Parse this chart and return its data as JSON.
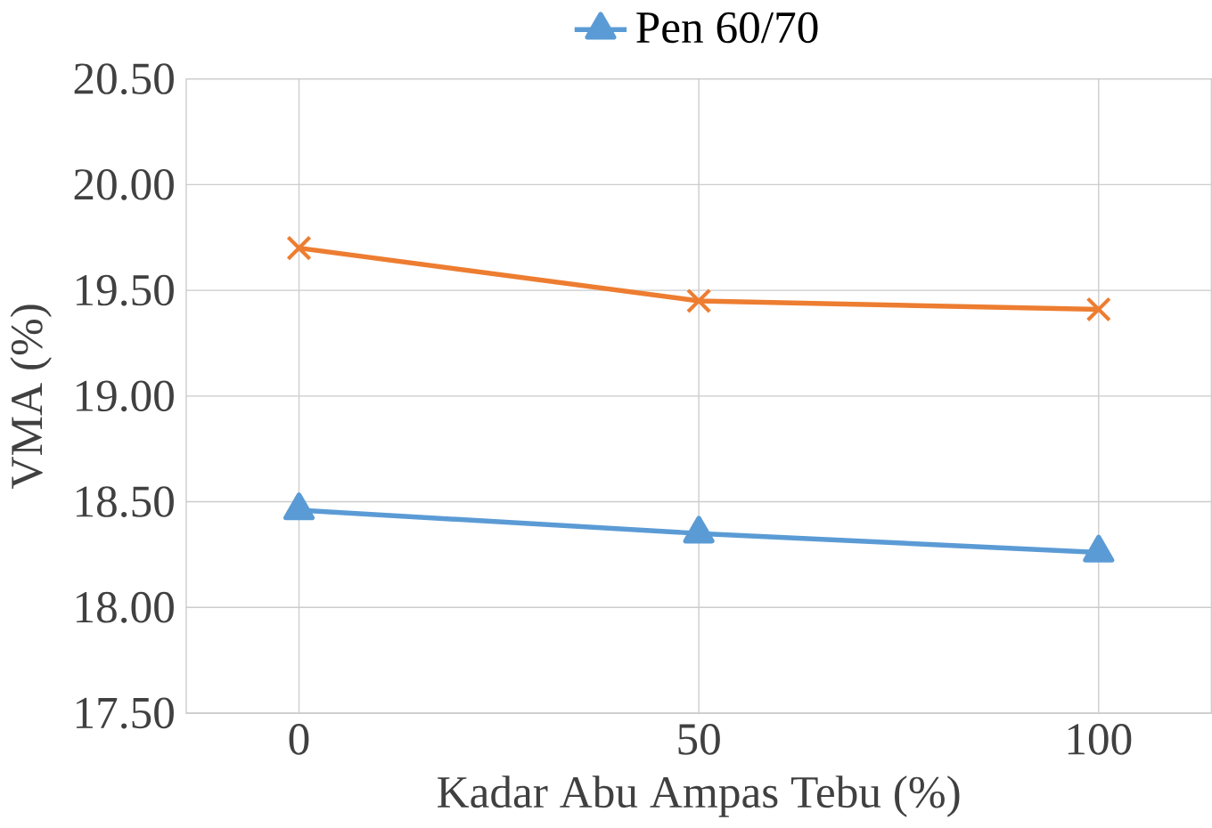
{
  "chart_data": {
    "type": "line",
    "xlabel": "Kadar Abu Ampas Tebu (%)",
    "ylabel": "VMA (%)",
    "x": [
      0,
      50,
      100
    ],
    "series": [
      {
        "name": "Pen 60/70",
        "color": "#5b9bd5",
        "marker": "triangle",
        "values": [
          18.46,
          18.35,
          18.26
        ]
      },
      {
        "color": "#ed7d31",
        "marker": "cross",
        "values": [
          19.7,
          19.45,
          19.41
        ]
      }
    ],
    "xlim": [
      0,
      100
    ],
    "xticks": [
      0,
      50,
      100
    ],
    "ylim": [
      17.5,
      20.5
    ],
    "yticks": [
      {
        "value": 17.5,
        "label": "17.50"
      },
      {
        "value": 18.0,
        "label": "18.00"
      },
      {
        "value": 18.5,
        "label": "18.50"
      },
      {
        "value": 19.0,
        "label": "19.00"
      },
      {
        "value": 19.5,
        "label": "19.50"
      },
      {
        "value": 20.0,
        "label": "20.00"
      },
      {
        "value": 20.5,
        "label": "20.50"
      }
    ],
    "grid": true,
    "legend": "top"
  }
}
